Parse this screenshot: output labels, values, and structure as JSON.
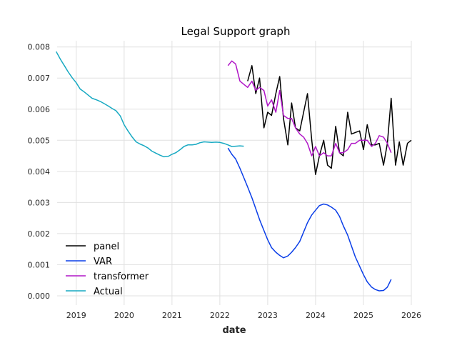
{
  "chart_data": {
    "type": "line",
    "title": "Legal Support graph",
    "xlabel": "date",
    "ylabel": "",
    "xlim": [
      2018.6,
      2026.0
    ],
    "ylim": [
      -0.0003,
      0.0082
    ],
    "x_ticks": [
      {
        "value": 2019,
        "label": "2019"
      },
      {
        "value": 2020,
        "label": "2020"
      },
      {
        "value": 2021,
        "label": "2021"
      },
      {
        "value": 2022,
        "label": "2022"
      },
      {
        "value": 2023,
        "label": "2023"
      },
      {
        "value": 2024,
        "label": "2024"
      },
      {
        "value": 2025,
        "label": "2025"
      },
      {
        "value": 2026,
        "label": "2026"
      }
    ],
    "y_ticks": [
      {
        "value": 0.0,
        "label": "0.000"
      },
      {
        "value": 0.001,
        "label": "0.001"
      },
      {
        "value": 0.002,
        "label": "0.002"
      },
      {
        "value": 0.003,
        "label": "0.003"
      },
      {
        "value": 0.004,
        "label": "0.004"
      },
      {
        "value": 0.005,
        "label": "0.005"
      },
      {
        "value": 0.006,
        "label": "0.006"
      },
      {
        "value": 0.007,
        "label": "0.007"
      },
      {
        "value": 0.008,
        "label": "0.008"
      }
    ],
    "grid": true,
    "legend_position": "lower-left",
    "series": [
      {
        "name": "panel",
        "color": "#000000",
        "x": [
          2022.58,
          2022.67,
          2022.75,
          2022.83,
          2022.92,
          2023.0,
          2023.08,
          2023.17,
          2023.25,
          2023.33,
          2023.42,
          2023.5,
          2023.58,
          2023.67,
          2023.75,
          2023.83,
          2023.92,
          2024.0,
          2024.08,
          2024.17,
          2024.25,
          2024.33,
          2024.42,
          2024.5,
          2024.58,
          2024.67,
          2024.75,
          2024.83,
          2024.92,
          2025.0,
          2025.08,
          2025.17,
          2025.25,
          2025.33,
          2025.42,
          2025.5,
          2025.58,
          2025.67,
          2025.75,
          2025.83,
          2025.92,
          2026.0
        ],
        "y": [
          0.0069,
          0.0074,
          0.0065,
          0.007,
          0.0054,
          0.0059,
          0.0058,
          0.0065,
          0.00705,
          0.0057,
          0.00485,
          0.0062,
          0.0054,
          0.0053,
          0.0059,
          0.0065,
          0.005,
          0.0039,
          0.0045,
          0.005,
          0.0042,
          0.0041,
          0.00545,
          0.0046,
          0.0045,
          0.0059,
          0.0052,
          0.00525,
          0.0053,
          0.0047,
          0.0055,
          0.00485,
          0.00485,
          0.0049,
          0.0042,
          0.0049,
          0.00635,
          0.0042,
          0.00495,
          0.0042,
          0.0049,
          0.005
        ]
      },
      {
        "name": "VAR",
        "color": "#0a3ee8",
        "x": [
          2022.17,
          2022.25,
          2022.33,
          2022.42,
          2022.5,
          2022.58,
          2022.67,
          2022.75,
          2022.83,
          2022.92,
          2023.0,
          2023.08,
          2023.17,
          2023.25,
          2023.33,
          2023.42,
          2023.5,
          2023.58,
          2023.67,
          2023.75,
          2023.83,
          2023.92,
          2024.0,
          2024.08,
          2024.17,
          2024.25,
          2024.33,
          2024.42,
          2024.5,
          2024.58,
          2024.67,
          2024.75,
          2024.83,
          2024.92,
          2025.0,
          2025.08,
          2025.17,
          2025.25,
          2025.33,
          2025.42,
          2025.5,
          2025.58
        ],
        "y": [
          0.00475,
          0.00455,
          0.0044,
          0.0041,
          0.0038,
          0.0035,
          0.00315,
          0.0028,
          0.00245,
          0.0021,
          0.0018,
          0.00155,
          0.0014,
          0.0013,
          0.00122,
          0.00128,
          0.0014,
          0.00155,
          0.00175,
          0.00205,
          0.00235,
          0.0026,
          0.00275,
          0.0029,
          0.00295,
          0.00292,
          0.00285,
          0.00275,
          0.00255,
          0.00225,
          0.00195,
          0.0016,
          0.00125,
          0.00095,
          0.00068,
          0.00045,
          0.00028,
          0.0002,
          0.00016,
          0.00017,
          0.00028,
          0.00053
        ]
      },
      {
        "name": "transformer",
        "color": "#b015c7",
        "x": [
          2022.17,
          2022.25,
          2022.33,
          2022.42,
          2022.5,
          2022.58,
          2022.67,
          2022.75,
          2022.83,
          2022.92,
          2023.0,
          2023.08,
          2023.17,
          2023.25,
          2023.33,
          2023.42,
          2023.5,
          2023.58,
          2023.67,
          2023.75,
          2023.83,
          2023.92,
          2024.0,
          2024.08,
          2024.17,
          2024.25,
          2024.33,
          2024.42,
          2024.5,
          2024.58,
          2024.67,
          2024.75,
          2024.83,
          2024.92,
          2025.0,
          2025.08,
          2025.17,
          2025.25,
          2025.33,
          2025.42,
          2025.5,
          2025.58
        ],
        "y": [
          0.0074,
          0.00755,
          0.00745,
          0.0069,
          0.0068,
          0.0067,
          0.0069,
          0.0066,
          0.0067,
          0.0066,
          0.0061,
          0.0063,
          0.0059,
          0.0066,
          0.0058,
          0.0057,
          0.0057,
          0.0054,
          0.0052,
          0.0051,
          0.0049,
          0.0045,
          0.0048,
          0.0045,
          0.0046,
          0.0045,
          0.0045,
          0.0049,
          0.0046,
          0.0046,
          0.0047,
          0.0049,
          0.0049,
          0.005,
          0.005,
          0.005,
          0.0048,
          0.0049,
          0.00515,
          0.0051,
          0.0049,
          0.0046
        ]
      },
      {
        "name": "Actual",
        "color": "#17a9c2",
        "x": [
          2018.58,
          2018.67,
          2018.75,
          2018.83,
          2018.92,
          2019.0,
          2019.08,
          2019.17,
          2019.25,
          2019.33,
          2019.42,
          2019.5,
          2019.58,
          2019.67,
          2019.75,
          2019.83,
          2019.92,
          2020.0,
          2020.08,
          2020.17,
          2020.25,
          2020.33,
          2020.42,
          2020.5,
          2020.58,
          2020.67,
          2020.75,
          2020.83,
          2020.92,
          2021.0,
          2021.08,
          2021.17,
          2021.25,
          2021.33,
          2021.42,
          2021.5,
          2021.58,
          2021.67,
          2021.75,
          2021.83,
          2021.92,
          2022.0,
          2022.08,
          2022.17,
          2022.25,
          2022.33,
          2022.42,
          2022.5
        ],
        "y": [
          0.00785,
          0.0076,
          0.0074,
          0.0072,
          0.007,
          0.00685,
          0.00665,
          0.00655,
          0.00645,
          0.00635,
          0.0063,
          0.00625,
          0.00618,
          0.0061,
          0.00602,
          0.00595,
          0.00578,
          0.0055,
          0.0053,
          0.0051,
          0.00495,
          0.00488,
          0.00482,
          0.00475,
          0.00465,
          0.00458,
          0.00452,
          0.00447,
          0.00448,
          0.00455,
          0.0046,
          0.0047,
          0.0048,
          0.00485,
          0.00485,
          0.00487,
          0.00492,
          0.00495,
          0.00494,
          0.00493,
          0.00494,
          0.00493,
          0.0049,
          0.00485,
          0.0048,
          0.00481,
          0.00482,
          0.00481
        ]
      }
    ]
  }
}
